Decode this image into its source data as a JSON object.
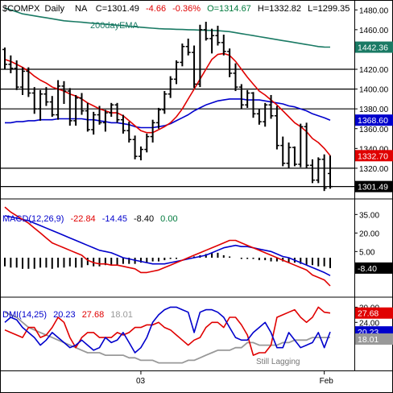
{
  "colors": {
    "price_bar": "#000000",
    "ema_short": "#e00000",
    "ema_mid": "#0000cc",
    "ema_200": "#1a7a64",
    "macd_line": "#e00000",
    "macd_signal": "#0000cc",
    "hist": "#000000",
    "dmi_plus": "#0000cc",
    "dmi_minus": "#e00000",
    "adx": "#999999",
    "hline": "#000000",
    "axis": "#000000"
  },
  "header": {
    "symbol": "$COMPX",
    "period": "Daily",
    "na": "NA",
    "close": "C=1301.49",
    "change": "-4.66",
    "change_pct": "-0.36%",
    "open": "O=1314.67",
    "high": "H=1332.82",
    "low": "L=1299.35"
  },
  "labels": {
    "ema200": "200dayEMA",
    "macd_title": "MACD(12,26,9)",
    "macd_v1": "-22.84",
    "macd_v2": "-14.45",
    "macd_v3": "-8.40",
    "macd_v4": "0.00",
    "dmi_title": "DMI(14,25)",
    "dmi_v1": "20.23",
    "dmi_v2": "27.68",
    "dmi_v3": "18.01",
    "annotation": "Still Lagging"
  },
  "value_tags": {
    "ema200": "1442.36",
    "ema_mid": "1368.60",
    "ema_short": "1332.70",
    "close": "1301.49",
    "macd_hist": "-8.40",
    "dmi_minus": "27.68",
    "dmi_plus": "20.23",
    "adx": "18.01"
  },
  "chart_data": [
    {
      "type": "ohlc",
      "panel": "price",
      "ylim": [
        1289,
        1490
      ],
      "yticks": [
        "1480.00",
        "1460.00",
        "1440.00",
        "1420.00",
        "1400.00",
        "1380.00",
        "1360.00",
        "1340.00",
        "1320.00",
        "1300.00"
      ],
      "horizontal_lines": [
        1420,
        1400,
        1380,
        1320,
        1301.49
      ],
      "ohlc": [
        [
          1440,
          1442,
          1420,
          1425
        ],
        [
          1425,
          1434,
          1416,
          1421
        ],
        [
          1421,
          1429,
          1399,
          1402
        ],
        [
          1402,
          1422,
          1394,
          1418
        ],
        [
          1418,
          1422,
          1392,
          1396
        ],
        [
          1396,
          1402,
          1375,
          1380
        ],
        [
          1380,
          1399,
          1368,
          1395
        ],
        [
          1395,
          1402,
          1383,
          1387
        ],
        [
          1387,
          1393,
          1372,
          1374
        ],
        [
          1374,
          1409,
          1369,
          1403
        ],
        [
          1403,
          1408,
          1385,
          1398
        ],
        [
          1398,
          1401,
          1363,
          1368
        ],
        [
          1368,
          1394,
          1363,
          1391
        ],
        [
          1391,
          1396,
          1374,
          1378
        ],
        [
          1378,
          1386,
          1357,
          1359
        ],
        [
          1359,
          1377,
          1354,
          1374
        ],
        [
          1374,
          1383,
          1364,
          1366
        ],
        [
          1366,
          1379,
          1357,
          1376
        ],
        [
          1376,
          1386,
          1372,
          1384
        ],
        [
          1384,
          1386,
          1366,
          1369
        ],
        [
          1369,
          1374,
          1355,
          1358
        ],
        [
          1358,
          1367,
          1346,
          1349
        ],
        [
          1349,
          1353,
          1329,
          1332
        ],
        [
          1332,
          1342,
          1328,
          1339
        ],
        [
          1339,
          1355,
          1336,
          1352
        ],
        [
          1352,
          1369,
          1346,
          1366
        ],
        [
          1366,
          1381,
          1360,
          1379
        ],
        [
          1379,
          1398,
          1375,
          1395
        ],
        [
          1395,
          1413,
          1391,
          1410
        ],
        [
          1410,
          1429,
          1405,
          1427
        ],
        [
          1427,
          1446,
          1423,
          1443
        ],
        [
          1443,
          1451,
          1434,
          1437
        ],
        [
          1437,
          1444,
          1401,
          1405
        ],
        [
          1405,
          1465,
          1402,
          1460
        ],
        [
          1460,
          1468,
          1449,
          1451
        ],
        [
          1451,
          1461,
          1436,
          1454
        ],
        [
          1454,
          1464,
          1444,
          1447
        ],
        [
          1447,
          1455,
          1434,
          1438
        ],
        [
          1438,
          1441,
          1412,
          1416
        ],
        [
          1416,
          1426,
          1398,
          1402
        ],
        [
          1402,
          1405,
          1380,
          1384
        ],
        [
          1384,
          1399,
          1381,
          1396
        ],
        [
          1396,
          1397,
          1371,
          1375
        ],
        [
          1375,
          1380,
          1364,
          1367
        ],
        [
          1367,
          1386,
          1362,
          1384
        ],
        [
          1384,
          1394,
          1370,
          1373
        ],
        [
          1373,
          1383,
          1339,
          1343
        ],
        [
          1343,
          1352,
          1322,
          1325
        ],
        [
          1325,
          1346,
          1320,
          1341
        ],
        [
          1341,
          1342,
          1322,
          1324
        ],
        [
          1324,
          1365,
          1321,
          1362
        ],
        [
          1362,
          1366,
          1320,
          1323
        ],
        [
          1323,
          1329,
          1305,
          1308
        ],
        [
          1308,
          1331,
          1305,
          1329
        ],
        [
          1329,
          1334,
          1297,
          1300
        ],
        [
          1314.67,
          1332.82,
          1299.35,
          1301.49
        ]
      ],
      "ema_short": [
        1430,
        1428,
        1425,
        1422,
        1418,
        1413,
        1409,
        1406,
        1402,
        1400,
        1398,
        1395,
        1393,
        1390,
        1386,
        1383,
        1380,
        1378,
        1376,
        1376,
        1373,
        1368,
        1363,
        1358,
        1356,
        1356,
        1359,
        1362,
        1366,
        1372,
        1380,
        1390,
        1400,
        1410,
        1420,
        1430,
        1435,
        1436,
        1434,
        1428,
        1420,
        1412,
        1405,
        1398,
        1394,
        1389,
        1384,
        1378,
        1372,
        1366,
        1362,
        1357,
        1350,
        1346,
        1340,
        1332.7
      ],
      "ema_mid": [
        1366,
        1366,
        1367,
        1367,
        1368,
        1368,
        1369,
        1369,
        1369,
        1370,
        1370,
        1370,
        1370,
        1370,
        1369,
        1369,
        1368,
        1367,
        1366,
        1366,
        1365,
        1364,
        1362,
        1361,
        1361,
        1361,
        1362,
        1363,
        1365,
        1368,
        1371,
        1374,
        1378,
        1381,
        1384,
        1386,
        1388,
        1389,
        1390,
        1390,
        1390,
        1389,
        1389,
        1389,
        1388,
        1387,
        1386,
        1385,
        1383,
        1382,
        1380,
        1378,
        1375,
        1373,
        1371,
        1368.6
      ],
      "ema_200": [
        1482,
        1480,
        1478,
        1476,
        1475,
        1474,
        1473,
        1472,
        1471,
        1470,
        1469,
        1468.5,
        1468,
        1467.5,
        1467,
        1466.5,
        1466,
        1465.5,
        1465,
        1464.5,
        1464,
        1463.5,
        1463,
        1462.5,
        1462,
        1461.5,
        1461,
        1460.8,
        1460.6,
        1460.4,
        1460.2,
        1460,
        1459.8,
        1459.6,
        1459.4,
        1459.2,
        1459,
        1458.5,
        1458,
        1457,
        1456,
        1455,
        1454,
        1453,
        1452,
        1451,
        1450,
        1449,
        1448,
        1447,
        1446,
        1445,
        1444,
        1443,
        1442.5,
        1442.36
      ]
    },
    {
      "type": "macd",
      "panel": "macd",
      "ylim": [
        -30,
        45
      ],
      "yticks": [
        "35.00",
        "20.00",
        "5.00"
      ],
      "macd": [
        41,
        37,
        34,
        31,
        28,
        24,
        20,
        16,
        12,
        10,
        8,
        6,
        4,
        2,
        -2,
        -4,
        -5,
        -5,
        -6,
        -6,
        -7,
        -8,
        -9,
        -12,
        -12,
        -11,
        -10,
        -8,
        -6,
        -4,
        -2,
        0,
        2,
        4,
        6,
        8,
        10,
        12,
        14,
        14,
        12,
        10,
        8,
        6,
        4,
        2,
        0,
        -2,
        -4,
        -6,
        -8,
        -10,
        -14,
        -16,
        -18,
        -22.84
      ],
      "signal": [
        34,
        33,
        32,
        31,
        30,
        28,
        26,
        24,
        22,
        20,
        18,
        16,
        14,
        12,
        10,
        8,
        6,
        5,
        4,
        2,
        0,
        -1,
        -2,
        -3,
        -4,
        -5,
        -5,
        -5,
        -4,
        -3,
        -2,
        -1,
        0,
        1,
        2,
        4,
        6,
        8,
        9,
        10,
        9,
        9,
        8,
        7,
        6,
        5,
        3,
        1,
        0,
        -2,
        -4,
        -6,
        -8,
        -10,
        -12,
        -14.45
      ],
      "histogram": [
        -7,
        -8,
        -8,
        -9,
        -9,
        -9,
        -8,
        -8,
        -9,
        -8,
        -8,
        -7,
        -8,
        -8,
        -6,
        -7,
        -7,
        -6,
        -6,
        -6,
        -5,
        -5,
        -5,
        -4,
        -4,
        -3,
        -3,
        -2,
        -1,
        -1,
        0,
        0,
        1,
        2,
        3,
        4,
        4,
        2,
        1,
        0,
        -1,
        -1,
        -1,
        -2,
        -2,
        -3,
        -3,
        -3,
        -4,
        -4,
        -5,
        -6,
        -6,
        -7,
        -7,
        -8.4
      ]
    },
    {
      "type": "dmi",
      "panel": "dmi",
      "ylim": [
        5,
        33
      ],
      "yticks": [
        "30.00",
        "24.00",
        "18.00"
      ],
      "plus_di": [
        24,
        26,
        25,
        22,
        20,
        18,
        15,
        17,
        20,
        18,
        16,
        14,
        15,
        17,
        15,
        13,
        14,
        18,
        16,
        17,
        20,
        16,
        12,
        14,
        18,
        24,
        27,
        29,
        30,
        30,
        29,
        28,
        20,
        28,
        29,
        29,
        28,
        26,
        22,
        18,
        17,
        17,
        20,
        22,
        24,
        20,
        14,
        14,
        20,
        17,
        14,
        15,
        16,
        20,
        14,
        20.23
      ],
      "minus_di": [
        21,
        20,
        19,
        18,
        22,
        22,
        18,
        19,
        22,
        26,
        24,
        18,
        14,
        18,
        20,
        20,
        18,
        18,
        18,
        20,
        19,
        20,
        22,
        22,
        23,
        23,
        24,
        22,
        21,
        19,
        17,
        15,
        17,
        18,
        22,
        24,
        24,
        22,
        26,
        26,
        23,
        19,
        11,
        12,
        12,
        15,
        26,
        27,
        28,
        29,
        26,
        24,
        26,
        30,
        28,
        27.68
      ],
      "adx": [
        28,
        27,
        26,
        24,
        22,
        21,
        20,
        19,
        18,
        17,
        16,
        15,
        14,
        13,
        12,
        12,
        12,
        11,
        11,
        11,
        11,
        10,
        10,
        9,
        9,
        9,
        8,
        8,
        8,
        8,
        8,
        9,
        9,
        10,
        11,
        12,
        13,
        13,
        13,
        14,
        14,
        16,
        16,
        15,
        15,
        15,
        15,
        16,
        16,
        17,
        17,
        17,
        18,
        18,
        18,
        18.01
      ]
    }
  ],
  "x_axis": {
    "tick_labels": [
      "03",
      "Feb"
    ]
  }
}
